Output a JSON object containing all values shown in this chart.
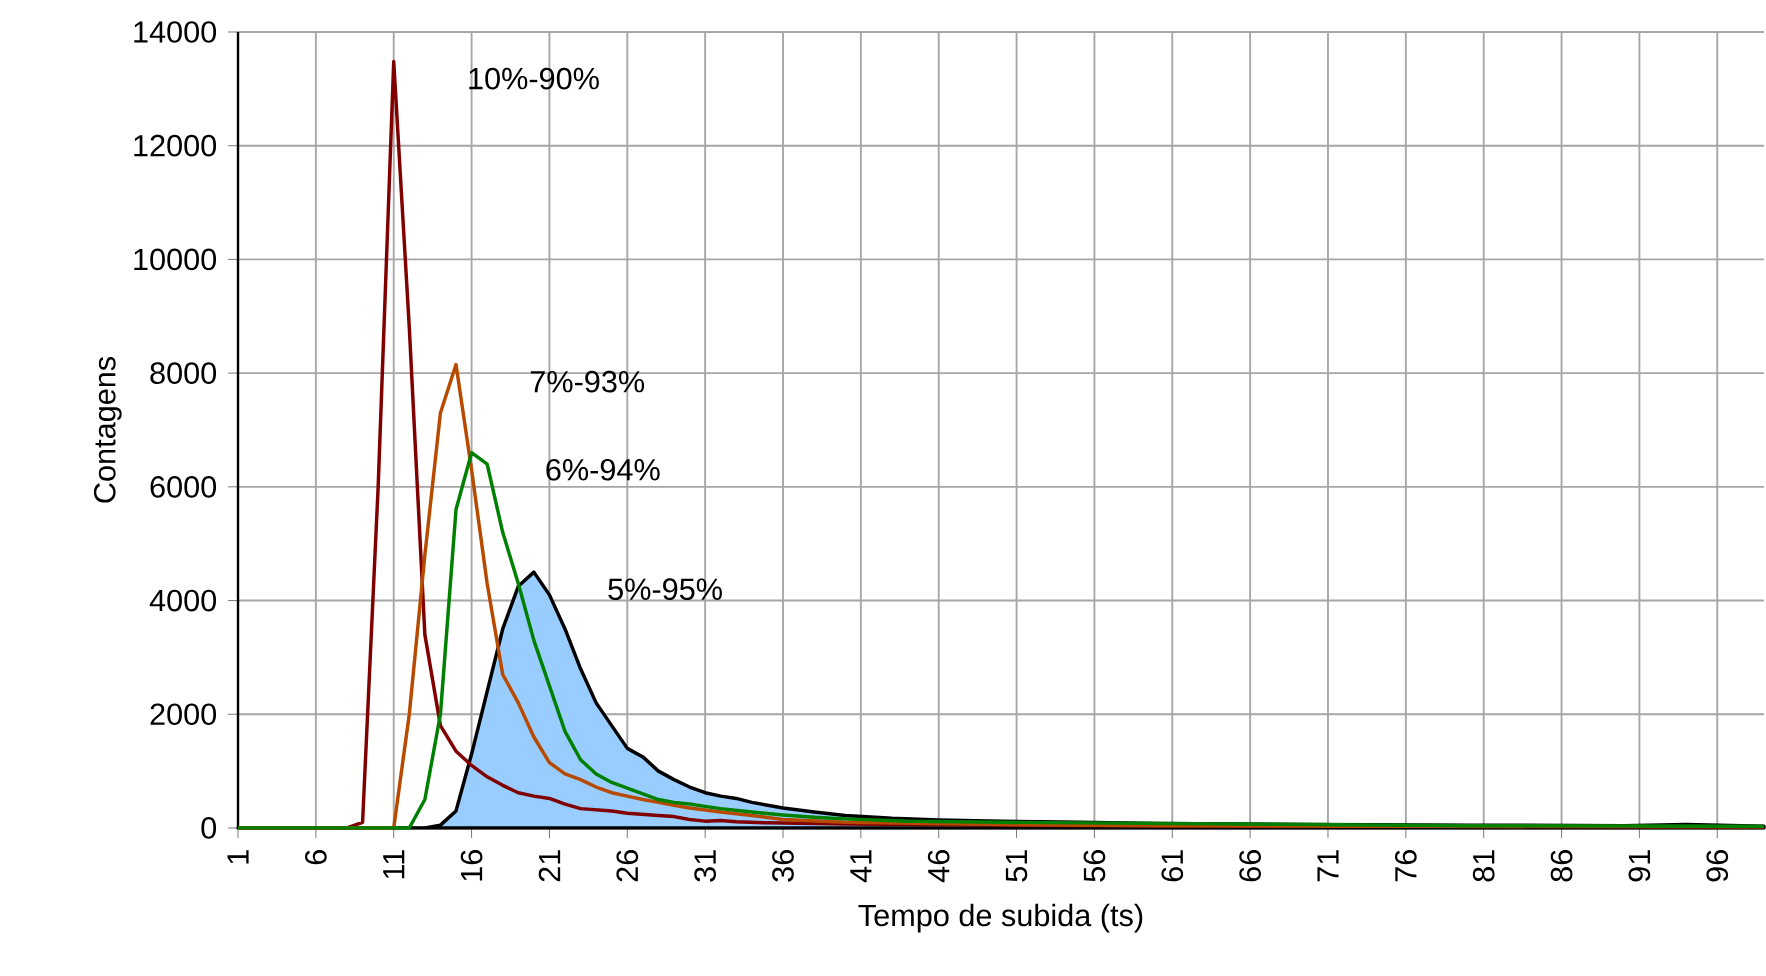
{
  "chart_data": {
    "type": "line",
    "xlabel": "Tempo de subida (ts)",
    "ylabel": "Contagens",
    "xlim": [
      1,
      99
    ],
    "xticks": [
      1,
      6,
      11,
      16,
      21,
      26,
      31,
      36,
      41,
      46,
      51,
      56,
      61,
      66,
      71,
      76,
      81,
      86,
      91,
      96
    ],
    "ylim": [
      0,
      14000
    ],
    "yticks": [
      0,
      2000,
      4000,
      6000,
      8000,
      10000,
      12000,
      14000
    ],
    "grid": true,
    "marker": "none",
    "series": [
      {
        "name": "10%-90%",
        "color": "#800000",
        "x": [
          1,
          8,
          9,
          10,
          11,
          12,
          13,
          14,
          15,
          16,
          17,
          18,
          19,
          20,
          21,
          22,
          23,
          24,
          25,
          26,
          27,
          28,
          29,
          30,
          31,
          32,
          33,
          35,
          40,
          50,
          60,
          70,
          80,
          90,
          99
        ],
        "values": [
          0,
          0,
          100,
          6000,
          13480,
          8800,
          3400,
          1800,
          1350,
          1100,
          900,
          750,
          620,
          560,
          520,
          420,
          340,
          320,
          300,
          260,
          240,
          220,
          200,
          150,
          120,
          130,
          110,
          90,
          70,
          50,
          40,
          30,
          30,
          20,
          20
        ]
      },
      {
        "name": "7%-93%",
        "color": "#b84a00",
        "x": [
          1,
          11,
          12,
          13,
          14,
          15,
          16,
          17,
          18,
          19,
          20,
          21,
          22,
          23,
          24,
          25,
          26,
          27,
          28,
          29,
          30,
          32,
          34,
          36,
          40,
          50,
          60,
          99
        ],
        "values": [
          0,
          0,
          2000,
          4800,
          7300,
          8150,
          6300,
          4300,
          2700,
          2200,
          1600,
          1150,
          950,
          850,
          720,
          620,
          560,
          500,
          450,
          400,
          350,
          280,
          220,
          150,
          100,
          60,
          40,
          20
        ]
      },
      {
        "name": "6%-94%",
        "color": "#008000",
        "x": [
          1,
          12,
          13,
          14,
          15,
          16,
          17,
          18,
          19,
          20,
          21,
          22,
          23,
          24,
          25,
          26,
          27,
          28,
          29,
          30,
          31,
          32,
          34,
          36,
          38,
          40,
          44,
          50,
          60,
          70,
          80,
          99
        ],
        "values": [
          0,
          0,
          500,
          2000,
          5600,
          6600,
          6400,
          5200,
          4300,
          3300,
          2500,
          1700,
          1200,
          950,
          800,
          700,
          600,
          500,
          450,
          420,
          380,
          340,
          280,
          230,
          190,
          160,
          120,
          100,
          80,
          60,
          40,
          30
        ]
      },
      {
        "name": "5%-95%",
        "type": "area",
        "color": "#99ccff",
        "x": [
          1,
          13,
          14,
          15,
          16,
          17,
          18,
          19,
          20,
          21,
          22,
          23,
          24,
          25,
          26,
          27,
          28,
          29,
          30,
          31,
          32,
          33,
          34,
          35,
          36,
          38,
          40,
          43,
          46,
          50,
          55,
          60,
          70,
          80,
          90,
          94,
          99
        ],
        "values": [
          0,
          0,
          50,
          300,
          1300,
          2400,
          3500,
          4250,
          4500,
          4100,
          3500,
          2800,
          2200,
          1800,
          1400,
          1250,
          1000,
          850,
          720,
          620,
          560,
          520,
          450,
          400,
          350,
          280,
          220,
          170,
          140,
          120,
          100,
          80,
          60,
          50,
          40,
          60,
          30
        ]
      }
    ]
  }
}
